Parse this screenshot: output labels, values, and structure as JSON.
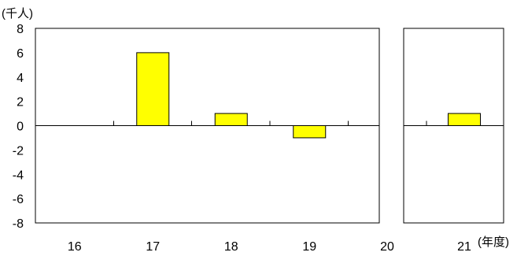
{
  "chart_data": {
    "type": "bar",
    "y_unit_label": "(千人)",
    "x_unit_label": "(年度)",
    "ylim": [
      -8,
      8
    ],
    "yticks": [
      8,
      6,
      4,
      2,
      0,
      -2,
      -4,
      -6,
      -8
    ],
    "grid": false,
    "panels": [
      {
        "categories": [
          "16",
          "17",
          "18",
          "19"
        ],
        "values": [
          0,
          6,
          1,
          -1
        ]
      },
      {
        "categories": [
          "21"
        ],
        "values": [
          1
        ]
      }
    ],
    "extra_x_labels": [
      "20"
    ],
    "bar_color": "#ffff00"
  }
}
